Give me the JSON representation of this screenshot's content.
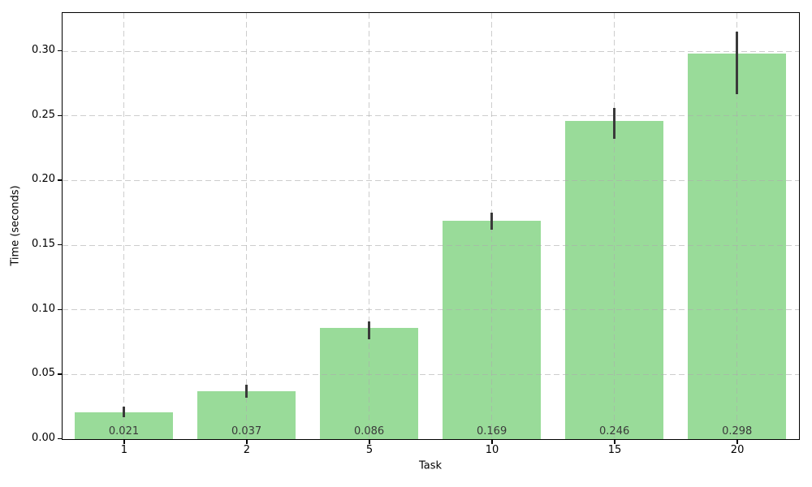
{
  "chart_data": {
    "type": "bar",
    "title": "",
    "xlabel": "Task",
    "ylabel": "Time (seconds)",
    "categories": [
      "1",
      "2",
      "5",
      "10",
      "15",
      "20"
    ],
    "values": [
      0.021,
      0.037,
      0.086,
      0.169,
      0.246,
      0.298
    ],
    "bar_labels": [
      "0.021",
      "0.037",
      "0.086",
      "0.169",
      "0.246",
      "0.298"
    ],
    "error_low": [
      0.004,
      0.005,
      0.009,
      0.007,
      0.014,
      0.031
    ],
    "error_high": [
      0.004,
      0.005,
      0.005,
      0.006,
      0.01,
      0.017
    ],
    "ylim": [
      0,
      0.329
    ],
    "yticks": [
      0.0,
      0.05,
      0.1,
      0.15,
      0.2,
      0.25,
      0.3
    ],
    "ytick_labels": [
      "0.00",
      "0.05",
      "0.10",
      "0.15",
      "0.20",
      "0.25",
      "0.30"
    ],
    "grid": "both-axes, dashed, drawn over bars",
    "legend": "none",
    "colors": {
      "bar_fill": "#99DB99",
      "error_bar": "#3a3a3a",
      "grid_line": "rgba(172,172,172,0.6)",
      "axis_spine": "#000000",
      "bar_label_text": "#3a3a3a",
      "tick_label_text": "#000000",
      "background": "#ffffff"
    }
  }
}
